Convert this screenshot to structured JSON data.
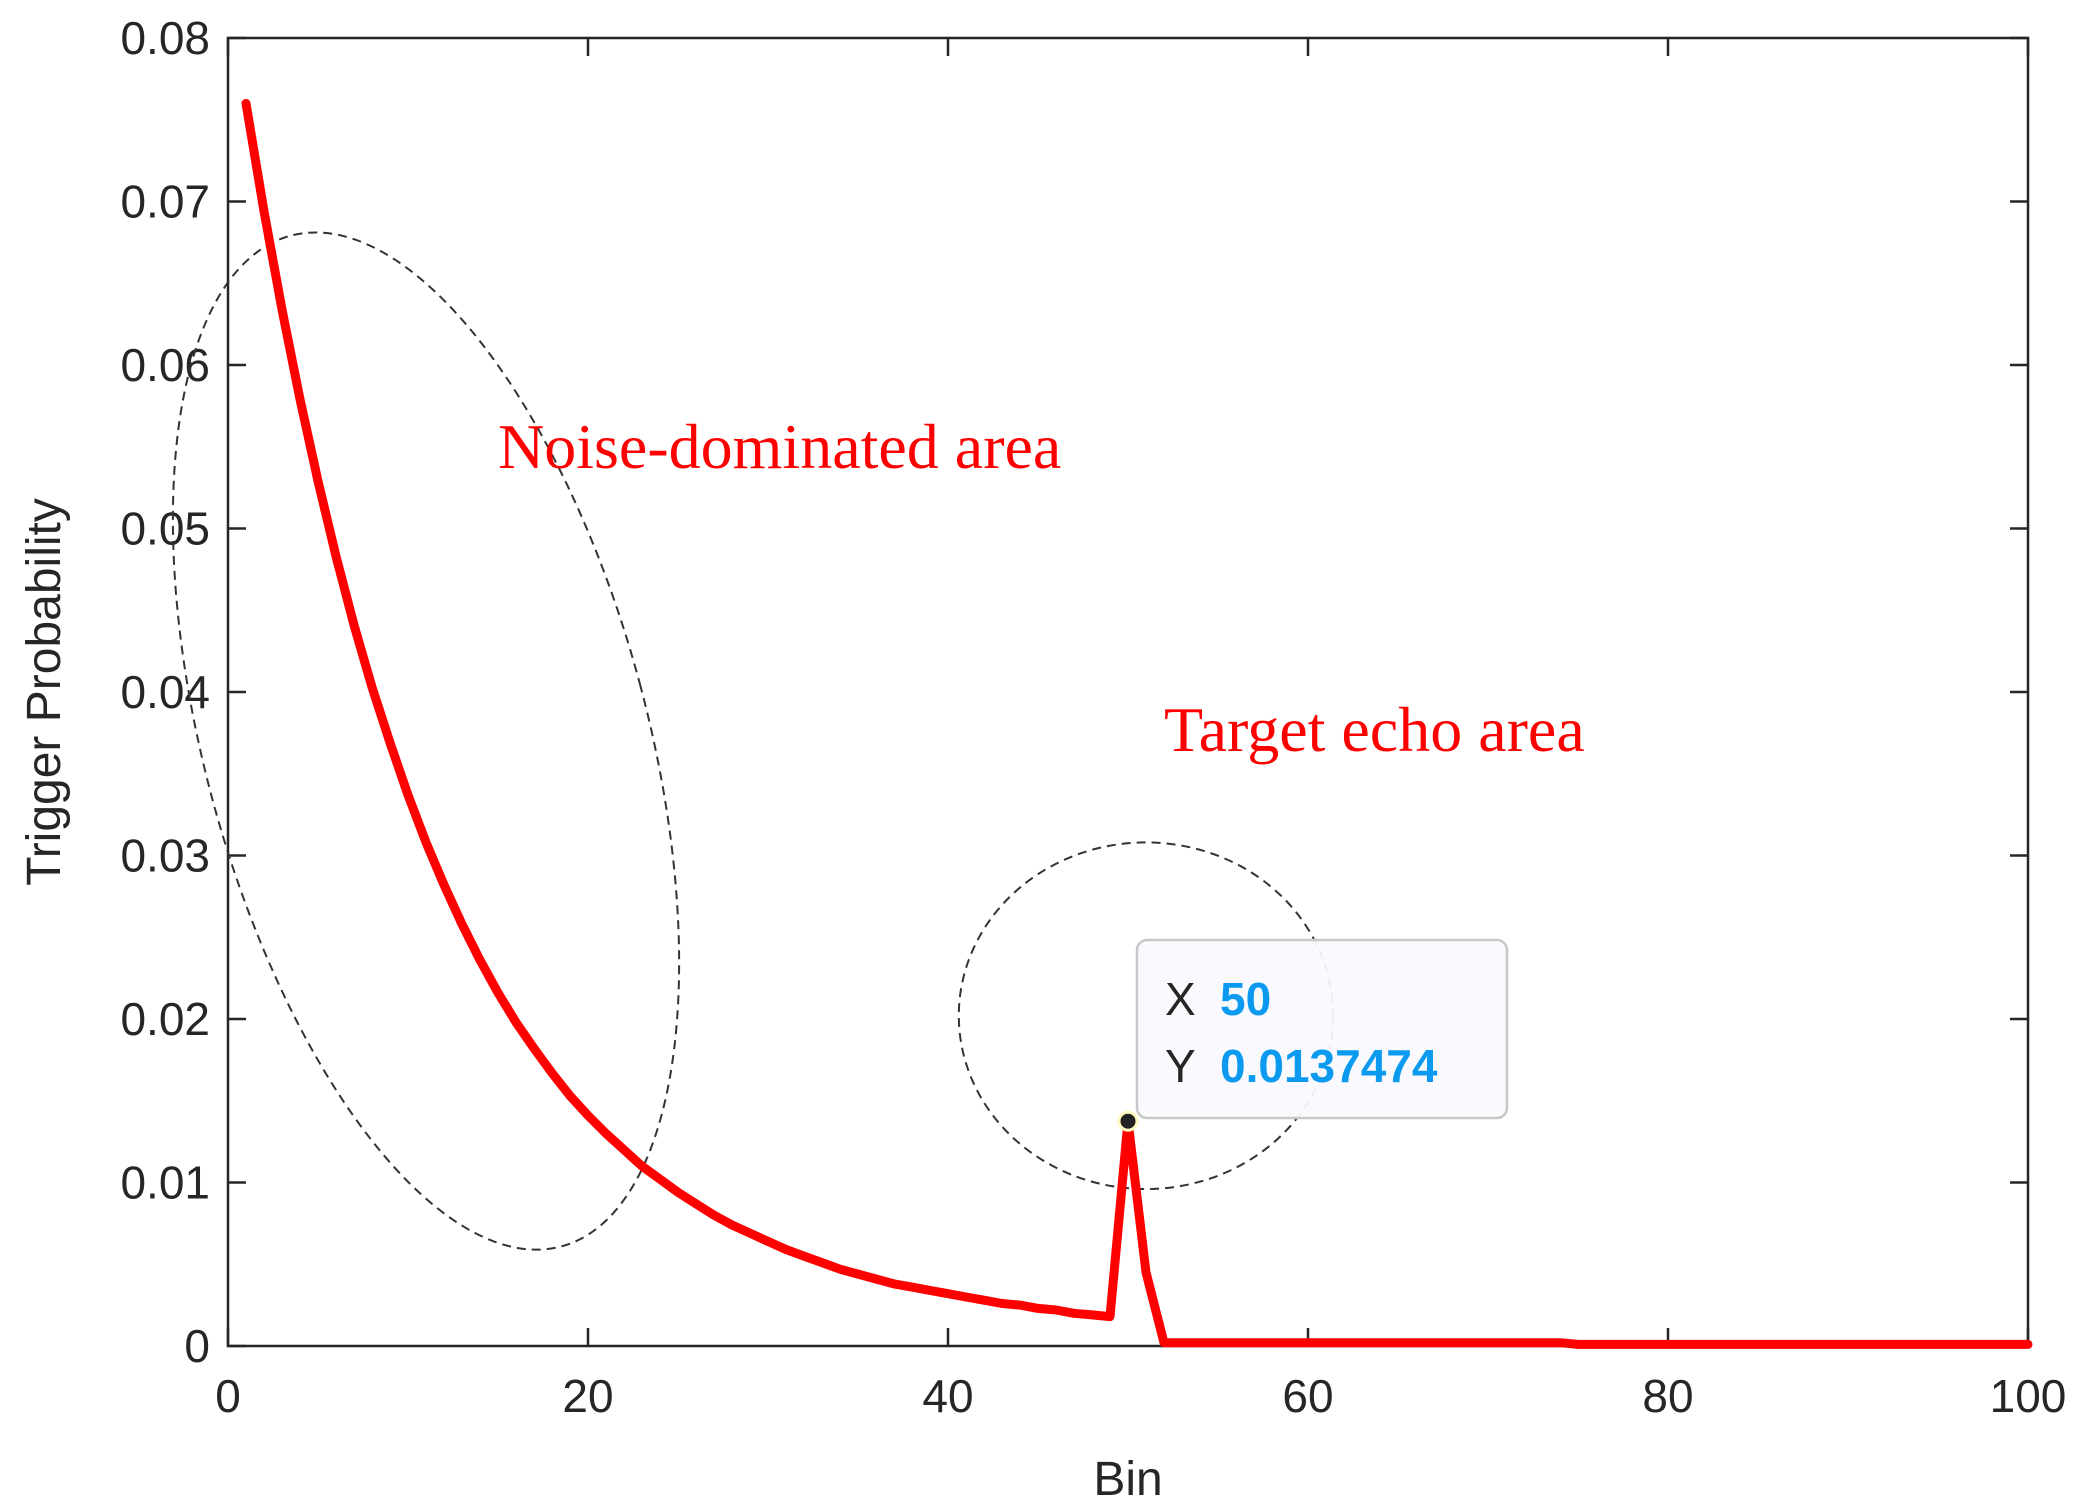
{
  "chart_data": {
    "type": "line",
    "xlabel": "Bin",
    "ylabel": "Trigger Probability",
    "xlim": [
      0,
      100
    ],
    "ylim": [
      0,
      0.08
    ],
    "xticks": [
      0,
      20,
      40,
      60,
      80,
      100
    ],
    "yticks": [
      0,
      0.01,
      0.02,
      0.03,
      0.04,
      0.05,
      0.06,
      0.07,
      0.08
    ],
    "xtick_labels": [
      "0",
      "20",
      "40",
      "60",
      "80",
      "100"
    ],
    "ytick_labels": [
      "0",
      "0.01",
      "0.02",
      "0.03",
      "0.04",
      "0.05",
      "0.06",
      "0.07",
      "0.08"
    ],
    "grid": false,
    "series": [
      {
        "color": "#ff0000",
        "x": [
          1,
          2,
          3,
          4,
          5,
          6,
          7,
          8,
          9,
          10,
          11,
          12,
          13,
          14,
          15,
          16,
          17,
          18,
          19,
          20,
          21,
          22,
          23,
          24,
          25,
          26,
          27,
          28,
          29,
          30,
          31,
          32,
          33,
          34,
          35,
          36,
          37,
          38,
          39,
          40,
          41,
          42,
          43,
          44,
          45,
          46,
          47,
          48,
          49,
          50,
          51,
          52,
          53,
          54,
          55,
          56,
          57,
          58,
          59,
          60,
          61,
          62,
          63,
          64,
          65,
          66,
          67,
          68,
          69,
          70,
          71,
          72,
          73,
          74,
          75,
          76,
          77,
          78,
          79,
          80,
          81,
          82,
          83,
          84,
          85,
          86,
          87,
          88,
          89,
          90,
          91,
          92,
          93,
          94,
          95,
          96,
          97,
          98,
          99,
          100
        ],
        "y": [
          0.076,
          0.0694,
          0.0634,
          0.0579,
          0.0529,
          0.0483,
          0.0441,
          0.0403,
          0.0369,
          0.0337,
          0.0308,
          0.0282,
          0.0258,
          0.0236,
          0.0216,
          0.0198,
          0.0182,
          0.0167,
          0.0153,
          0.0141,
          0.013,
          0.012,
          0.011,
          0.0102,
          0.0094,
          0.0087,
          0.008,
          0.0074,
          0.0069,
          0.0064,
          0.0059,
          0.0055,
          0.0051,
          0.0047,
          0.0044,
          0.0041,
          0.0038,
          0.0036,
          0.0034,
          0.0032,
          0.003,
          0.0028,
          0.0026,
          0.0025,
          0.0023,
          0.0022,
          0.002,
          0.0019,
          0.0018,
          0.0137474,
          0.0045,
          0.0002,
          0.0002,
          0.0002,
          0.0002,
          0.0002,
          0.0002,
          0.0002,
          0.0002,
          0.0002,
          0.0002,
          0.0002,
          0.0002,
          0.0002,
          0.0002,
          0.0002,
          0.0002,
          0.0002,
          0.0002,
          0.0002,
          0.0002,
          0.0002,
          0.0002,
          0.0002,
          0.0001,
          0.0001,
          0.0001,
          0.0001,
          0.0001,
          0.0001,
          0.0001,
          0.0001,
          0.0001,
          0.0001,
          0.0001,
          0.0001,
          0.0001,
          0.0001,
          0.0001,
          0.0001,
          0.0001,
          0.0001,
          0.0001,
          0.0001,
          0.0001,
          0.0001,
          0.0001,
          0.0001,
          0.0001,
          0.0001
        ]
      }
    ],
    "annotations": [
      {
        "text": "Noise-dominated area",
        "color": "#ff0000"
      },
      {
        "text": "Target echo area",
        "color": "#ff0000"
      }
    ],
    "regions": [
      {
        "name": "noise-dominated",
        "cx": 11,
        "cy": 0.037,
        "rx_bins": 12.3,
        "ry_value": 0.032,
        "angle_deg": -15
      },
      {
        "name": "target-echo",
        "cx": 51,
        "cy": 0.0202,
        "rx_bins": 10.4,
        "ry_value": 0.0106
      }
    ],
    "datatip": {
      "x_key": "X",
      "x_value": "50",
      "y_key": "Y",
      "y_value": "0.0137474",
      "point": [
        50,
        0.0137474
      ],
      "value_color": "#0b9af0"
    }
  }
}
